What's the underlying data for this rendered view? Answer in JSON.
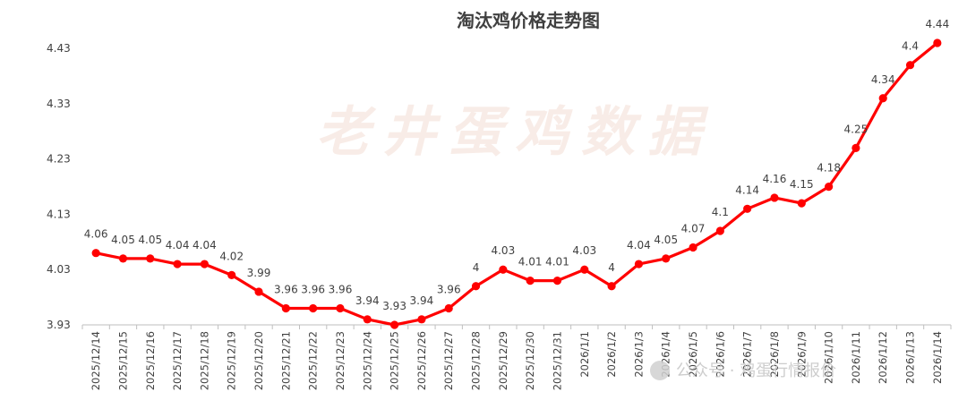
{
  "chart_data": {
    "type": "line",
    "title": "淘汰鸡价格走势图",
    "xlabel": "",
    "ylabel": "",
    "ylim": [
      3.93,
      4.45
    ],
    "yticks": [
      "3.93",
      "4.03",
      "4.13",
      "4.23",
      "4.33",
      "4.43"
    ],
    "grid": false,
    "legend": "none",
    "line_color": "#ff0000",
    "categories": [
      "2025/12/14",
      "2025/12/15",
      "2025/12/16",
      "2025/12/17",
      "2025/12/18",
      "2025/12/19",
      "2025/12/20",
      "2025/12/21",
      "2025/12/22",
      "2025/12/23",
      "2025/12/24",
      "2025/12/25",
      "2025/12/26",
      "2025/12/27",
      "2025/12/28",
      "2025/12/29",
      "2025/12/30",
      "2025/12/31",
      "2026/1/1",
      "2026/1/2",
      "2026/1/3",
      "2026/1/4",
      "2026/1/5",
      "2026/1/6",
      "2026/1/7",
      "2026/1/8",
      "2026/1/9",
      "2026/1/10",
      "2026/1/11",
      "2026/1/12",
      "2026/1/13",
      "2026/1/14"
    ],
    "values": [
      4.06,
      4.05,
      4.05,
      4.04,
      4.04,
      4.02,
      3.99,
      3.96,
      3.96,
      3.96,
      3.94,
      3.93,
      3.94,
      3.96,
      4,
      4.03,
      4.01,
      4.01,
      4.03,
      4,
      4.04,
      4.05,
      4.07,
      4.1,
      4.14,
      4.16,
      4.15,
      4.18,
      4.25,
      4.34,
      4.4,
      4.44
    ],
    "labels": [
      "4.06",
      "4.05",
      "4.05",
      "4.04",
      "4.04",
      "4.02",
      "3.99",
      "3.96",
      "3.96",
      "3.96",
      "3.94",
      "3.93",
      "3.94",
      "3.96",
      "4",
      "4.03",
      "4.01",
      "4.01",
      "4.03",
      "4",
      "4.04",
      "4.05",
      "4.07",
      "4.1",
      "4.14",
      "4.16",
      "4.15",
      "4.18",
      "4.25",
      "4.34",
      "4.4",
      "4.44"
    ]
  },
  "watermark": "老井蛋鸡数据",
  "footer_watermark": "公众号 · 鸡蛋行情报价"
}
